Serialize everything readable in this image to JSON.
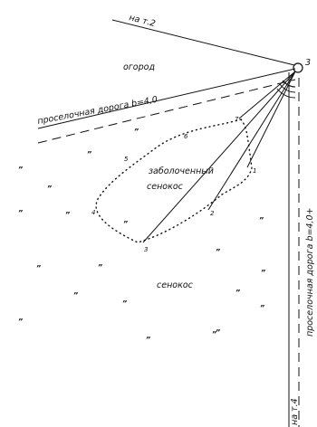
{
  "labels": {
    "to_point_2": "на т.2",
    "to_point_4": "на т.4",
    "garden": "огород",
    "dirt_road_top": "проселочная дорога b=4,0",
    "dirt_road_right": "проселочная дорога b=4,0+",
    "swampy": "заболоченный",
    "hayfield_swampy": "сенокос",
    "hayfield": "сенокос",
    "station": "3"
  },
  "points": {
    "p1": "1",
    "p2": "2",
    "p3": "3",
    "p4": "4",
    "p5": "5",
    "p6": "6",
    "p7": "7"
  },
  "grass_mark": "”"
}
